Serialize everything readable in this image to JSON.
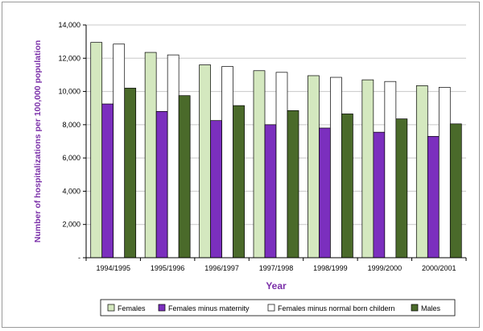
{
  "chart_data": {
    "type": "bar",
    "xlabel": "Year",
    "ylabel": "Number of hospitalizations per 100,000 population",
    "ylim": [
      0,
      14000
    ],
    "yticks": [
      0,
      2000,
      4000,
      6000,
      8000,
      10000,
      12000,
      14000
    ],
    "ytick_labels": [
      "-",
      "2,000",
      "4,000",
      "6,000",
      "8,000",
      "10,000",
      "12,000",
      "14,000"
    ],
    "grid": true,
    "legend_position": "bottom",
    "categories": [
      "1994/1995",
      "1995/1996",
      "1996/1997",
      "1997/1998",
      "1998/1999",
      "1999/2000",
      "2000/2001"
    ],
    "series": [
      {
        "name": "Females",
        "color": "#d4e8bf",
        "values": [
          12950,
          12350,
          11600,
          11250,
          10950,
          10700,
          10350
        ]
      },
      {
        "name": "Females minus maternity",
        "color": "#7b2fbe",
        "values": [
          9250,
          8800,
          8250,
          8000,
          7800,
          7550,
          7300
        ]
      },
      {
        "name": "Females minus normal born childern",
        "color": "#ffffff",
        "values": [
          12850,
          12200,
          11500,
          11150,
          10850,
          10600,
          10250
        ]
      },
      {
        "name": "Males",
        "color": "#4a6a2a",
        "values": [
          10200,
          9750,
          9150,
          8850,
          8650,
          8350,
          8050
        ]
      }
    ]
  }
}
